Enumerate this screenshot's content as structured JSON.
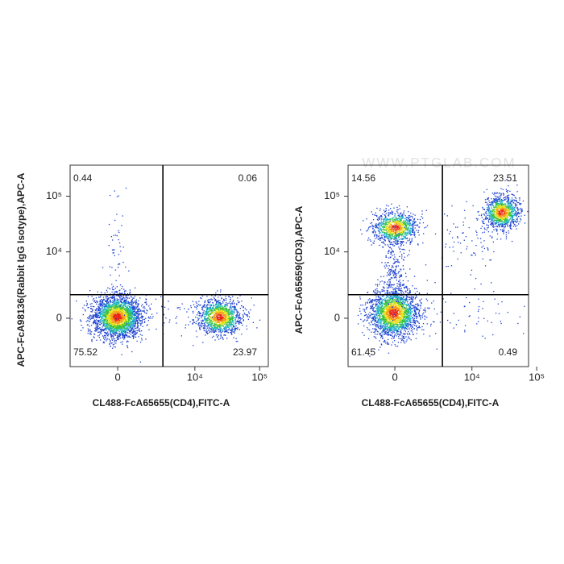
{
  "watermark": "WWW.PTGLAB.COM",
  "chart_data": [
    {
      "type": "flow",
      "xscale": "biexponential",
      "yscale": "biexponential",
      "x_label": "CL488-FcA65655(CD4),FITC-A",
      "y_label": "APC-FcA98136(Rabbit IgG Isotype),APC-A",
      "xlim": [
        -3400,
        136000
      ],
      "ylim": [
        -4700,
        360000
      ],
      "xticks": [
        0,
        {
          "value": 10000,
          "label": "10⁴"
        },
        {
          "value": 100000,
          "label": "10⁵"
        }
      ],
      "yticks": [
        0,
        {
          "value": 10000,
          "label": "10⁴"
        },
        {
          "value": 100000,
          "label": "10⁵"
        }
      ],
      "gate": {
        "x": 3100,
        "y": 1470
      },
      "quadrant_values": [
        0.44,
        0.06,
        75.52,
        23.97
      ]
    },
    {
      "type": "flow",
      "xscale": "biexponential",
      "yscale": "biexponential",
      "x_label": "CL488-FcA65655(CD4),FITC-A",
      "y_label": "APC-FcA65659(CD3),APC-A",
      "xlim": [
        -3300,
        75000
      ],
      "ylim": [
        -4700,
        360000
      ],
      "xticks": [
        0,
        {
          "value": 10000,
          "label": "10⁴"
        },
        {
          "value": 100000,
          "label": "10⁵"
        }
      ],
      "yticks": [
        0,
        {
          "value": 10000,
          "label": "10⁴"
        },
        {
          "value": 100000,
          "label": "10⁵"
        }
      ],
      "gate": {
        "x": 3400,
        "y": 1470
      },
      "quadrant_values": [
        14.56,
        23.51,
        61.45,
        0.49
      ]
    }
  ]
}
